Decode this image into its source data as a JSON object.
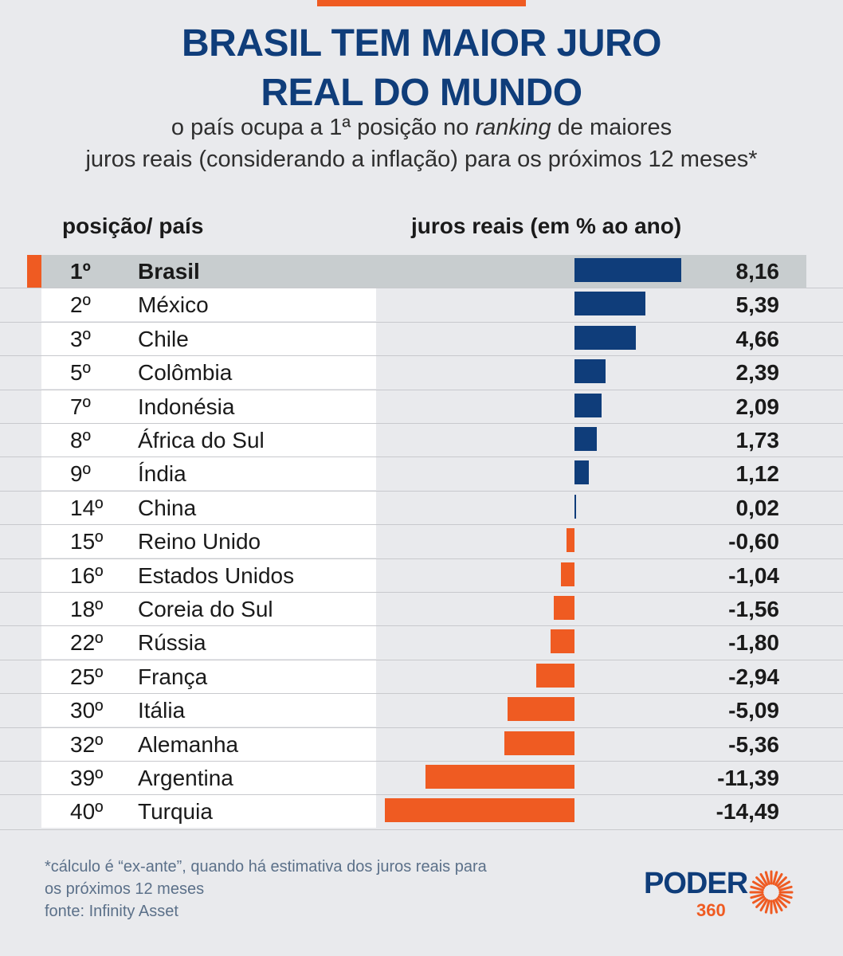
{
  "header": {
    "title_line1": "BRASIL TEM MAIOR JURO",
    "title_line2": "REAL DO MUNDO",
    "subtitle_pre": "o país ocupa a 1ª posição no ",
    "subtitle_italic": "ranking",
    "subtitle_post": " de maiores",
    "subtitle_line2": "juros reais (considerando a inflação) para os próximos 12 meses*"
  },
  "columns": {
    "left": "posição/ país",
    "right": "juros reais (em % ao ano)"
  },
  "colors": {
    "positive": "#0f3d7a",
    "negative": "#ef5b22",
    "highlight_row": "#c8cdcf"
  },
  "chart_data": {
    "type": "bar",
    "orientation": "horizontal",
    "xlabel": "juros reais (em % ao ano)",
    "categories": [
      "Brasil",
      "México",
      "Chile",
      "Colômbia",
      "Indonésia",
      "África do Sul",
      "Índia",
      "China",
      "Reino Unido",
      "Estados Unidos",
      "Coreia do Sul",
      "Rússia",
      "França",
      "Itália",
      "Alemanha",
      "Argentina",
      "Turquia"
    ],
    "ranks": [
      "1º",
      "2º",
      "3º",
      "5º",
      "7º",
      "8º",
      "9º",
      "14º",
      "15º",
      "16º",
      "18º",
      "22º",
      "25º",
      "30º",
      "32º",
      "39º",
      "40º"
    ],
    "values": [
      8.16,
      5.39,
      4.66,
      2.39,
      2.09,
      1.73,
      1.12,
      0.02,
      -0.6,
      -1.04,
      -1.56,
      -1.8,
      -2.94,
      -5.09,
      -5.36,
      -11.39,
      -14.49
    ],
    "labels": [
      "8,16",
      "5,39",
      "4,66",
      "2,39",
      "2,09",
      "1,73",
      "1,12",
      "0,02",
      "-0,60",
      "-1,04",
      "-1,56",
      "-1,80",
      "-2,94",
      "-5,09",
      "-5,36",
      "-11,39",
      "-14,49"
    ],
    "xlim": [
      -14.49,
      8.16
    ]
  },
  "footer": {
    "note_line1": "*cálculo é “ex-ante”, quando há estimativa dos juros reais para",
    "note_line2": "os próximos 12 meses",
    "source": "fonte: Infinity Asset",
    "logo_word": "PODER",
    "logo_number": "360"
  }
}
